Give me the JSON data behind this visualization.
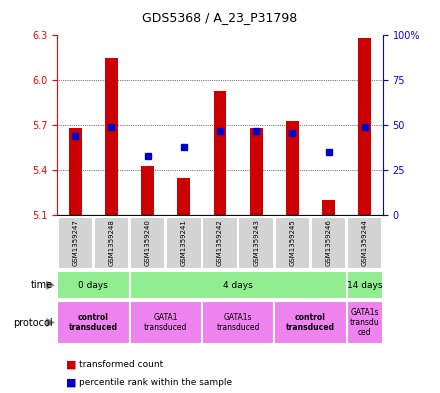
{
  "title": "GDS5368 / A_23_P31798",
  "samples": [
    "GSM1359247",
    "GSM1359248",
    "GSM1359240",
    "GSM1359241",
    "GSM1359242",
    "GSM1359243",
    "GSM1359245",
    "GSM1359246",
    "GSM1359244"
  ],
  "transformed_counts": [
    5.68,
    6.15,
    5.43,
    5.35,
    5.93,
    5.68,
    5.73,
    5.2,
    6.28
  ],
  "percentile_ranks": [
    44,
    49,
    33,
    38,
    47,
    47,
    46,
    35,
    49
  ],
  "y_min": 5.1,
  "y_max": 6.3,
  "y_ticks_left": [
    5.1,
    5.4,
    5.7,
    6.0,
    6.3
  ],
  "y_ticks_right": [
    0,
    25,
    50,
    75,
    100
  ],
  "bar_color": "#cc0000",
  "dot_color": "#0000cc",
  "time_labels": [
    {
      "label": "0 days",
      "start": 0,
      "end": 2,
      "color": "#90ee90"
    },
    {
      "label": "4 days",
      "start": 2,
      "end": 8,
      "color": "#90ee90"
    },
    {
      "label": "14 days",
      "start": 8,
      "end": 9,
      "color": "#90ee90"
    }
  ],
  "protocol_labels": [
    {
      "label": "control\ntransduced",
      "start": 0,
      "end": 2,
      "color": "#ee82ee",
      "bold": true
    },
    {
      "label": "GATA1\ntransduced",
      "start": 2,
      "end": 4,
      "color": "#ee82ee",
      "bold": false
    },
    {
      "label": "GATA1s\ntransduced",
      "start": 4,
      "end": 6,
      "color": "#ee82ee",
      "bold": false
    },
    {
      "label": "control\ntransduced",
      "start": 6,
      "end": 8,
      "color": "#ee82ee",
      "bold": true
    },
    {
      "label": "GATA1s\ntransdu\nced",
      "start": 8,
      "end": 9,
      "color": "#ee82ee",
      "bold": false
    }
  ],
  "legend_items": [
    {
      "color": "#cc0000",
      "label": "transformed count"
    },
    {
      "color": "#0000cc",
      "label": "percentile rank within the sample"
    }
  ],
  "grid_color": "#000000",
  "bg_color": "#ffffff",
  "plot_bg_color": "#ffffff",
  "sample_bg_color": "#d3d3d3"
}
